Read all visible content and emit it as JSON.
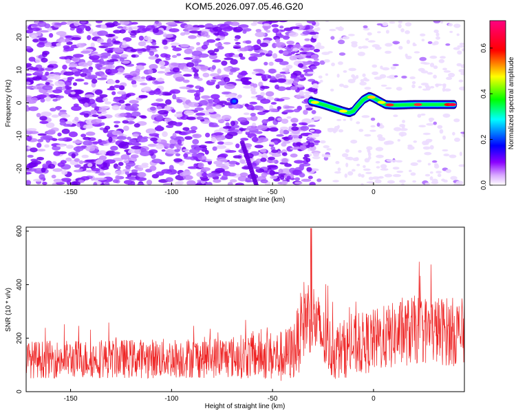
{
  "title": "KOM5.2026.097.05.46.G20",
  "chart_data": [
    {
      "type": "heatmap",
      "xlabel": "Height of straight line (km)",
      "ylabel": "Frequency (Hz)",
      "xlim": [
        -172,
        45
      ],
      "ylim": [
        -25,
        25
      ],
      "xticks": [
        -150,
        -100,
        -50,
        0
      ],
      "yticks": [
        -20,
        -10,
        0,
        10,
        20
      ],
      "colorbar": {
        "label": "Normalized spectral amplitude",
        "range": [
          0,
          0.72
        ],
        "ticks": [
          0.0,
          0.2,
          0.4,
          0.6
        ],
        "tick_labels": [
          "0.0",
          "0.2",
          "0.4",
          "0.6"
        ],
        "colors": [
          "#ffffff",
          "#cc88ff",
          "#8a00ff",
          "#0000ff",
          "#00ffff",
          "#00ff00",
          "#ffff00",
          "#ff0000",
          "#ff00ff"
        ]
      },
      "features": {
        "noise_region_km": [
          -172,
          -32
        ],
        "tonal_line": {
          "x": [
            -31,
            -25,
            -20,
            -15,
            -12,
            -10,
            -8,
            -5,
            -2,
            0,
            3,
            6,
            10,
            20,
            30,
            40
          ],
          "freq": [
            0.5,
            -0.5,
            -1.5,
            -2.5,
            -3,
            -2.5,
            -1,
            1,
            2,
            1.5,
            0.5,
            -0.5,
            -0.7,
            -0.5,
            -0.5,
            -0.5
          ]
        },
        "diagonal_streak": {
          "x": [
            -65,
            -58
          ],
          "freq": [
            -12,
            -25
          ]
        },
        "spot": {
          "x": -69,
          "freq": 0.5
        }
      },
      "grid": false
    },
    {
      "type": "line",
      "xlabel": "Height of straight line (km)",
      "ylabel": "SNR (10 * v/v)",
      "xlim": [
        -172,
        45
      ],
      "ylim": [
        0,
        615
      ],
      "xticks": [
        -150,
        -100,
        -50,
        0
      ],
      "yticks": [
        0,
        200,
        400,
        600
      ],
      "series_color": "#ee2222",
      "envelope": {
        "x": [
          -172,
          -100,
          -70,
          -55,
          -45,
          -40,
          -37,
          -35,
          -32,
          -30,
          -25,
          -20,
          -15,
          -10,
          0,
          10,
          20,
          30,
          45
        ],
        "baseline": [
          120,
          125,
          130,
          135,
          130,
          150,
          200,
          270,
          290,
          280,
          200,
          150,
          160,
          170,
          190,
          210,
          230,
          230,
          220
        ],
        "spread": [
          70,
          75,
          80,
          90,
          100,
          110,
          130,
          150,
          150,
          140,
          120,
          110,
          110,
          115,
          120,
          125,
          130,
          130,
          130
        ]
      },
      "peak": {
        "x": -31,
        "y": 610
      },
      "grid": false
    }
  ]
}
